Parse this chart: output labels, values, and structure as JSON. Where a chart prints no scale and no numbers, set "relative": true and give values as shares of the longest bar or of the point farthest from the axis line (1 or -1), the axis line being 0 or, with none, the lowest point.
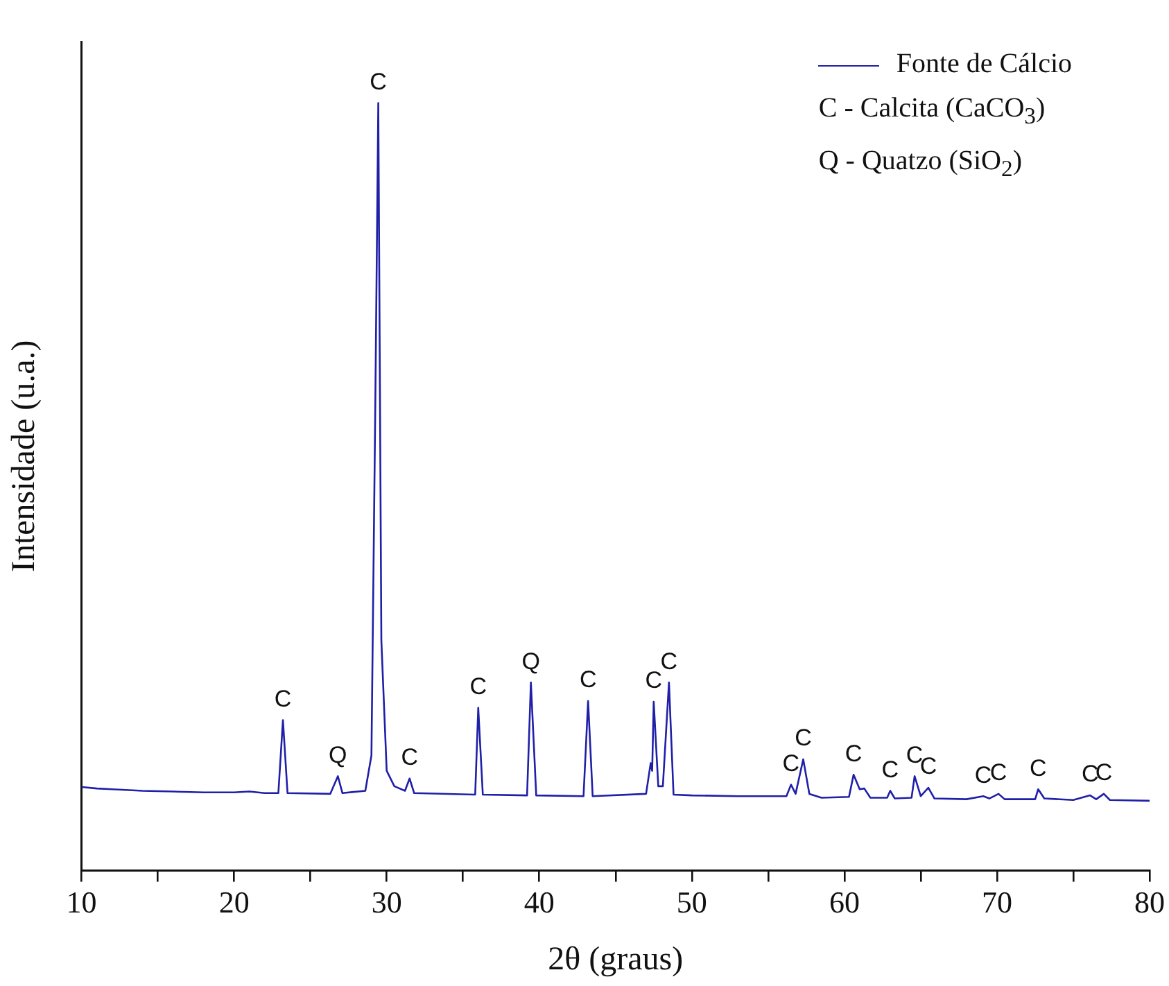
{
  "chart_data": {
    "type": "line",
    "relative": true,
    "xlabel": "2θ (graus)",
    "ylabel": "Intensidade (u.a.)",
    "legend": "top right",
    "marker": "none",
    "grid": false,
    "xlim": [
      10,
      80
    ],
    "xticks": [
      10,
      {
        "value": 15,
        "label": null
      },
      20,
      {
        "value": 25,
        "label": null
      },
      30,
      {
        "value": 35,
        "label": null
      },
      40,
      {
        "value": 45,
        "label": null
      },
      50,
      {
        "value": 55,
        "label": null
      },
      60,
      {
        "value": 65,
        "label": null
      },
      70,
      {
        "value": 75,
        "label": null
      },
      80
    ],
    "series": [
      {
        "name": "Fonte de Cálcio",
        "color": "#1f1fa8",
        "x": [
          10,
          11,
          12,
          14,
          16,
          18,
          20,
          21,
          22,
          22.9,
          23.2,
          23.5,
          26.3,
          26.8,
          27.1,
          28.6,
          29.0,
          29.25,
          29.45,
          29.65,
          30.0,
          30.5,
          31.2,
          31.5,
          31.8,
          35.8,
          36.0,
          36.3,
          39.2,
          39.45,
          39.8,
          42.9,
          43.2,
          43.5,
          47.0,
          47.3,
          47.4,
          47.5,
          47.8,
          48.1,
          48.5,
          48.8,
          50,
          53,
          56.2,
          56.5,
          56.8,
          57.3,
          57.7,
          58.5,
          60.3,
          60.6,
          61.0,
          61.3,
          61.7,
          62.8,
          63.0,
          63.3,
          64.4,
          64.6,
          65.0,
          65.5,
          65.9,
          68,
          69.1,
          69.5,
          70.1,
          70.5,
          72.5,
          72.7,
          73.1,
          75,
          76.1,
          76.5,
          77.0,
          77.4,
          80
        ],
        "values": [
          0.109,
          0.107,
          0.106,
          0.104,
          0.103,
          0.102,
          0.102,
          0.103,
          0.101,
          0.101,
          0.196,
          0.101,
          0.1,
          0.123,
          0.101,
          0.104,
          0.15,
          0.6,
          1,
          0.3,
          0.13,
          0.11,
          0.104,
          0.12,
          0.101,
          0.099,
          0.212,
          0.099,
          0.098,
          0.245,
          0.098,
          0.097,
          0.221,
          0.097,
          0.1,
          0.14,
          0.13,
          0.22,
          0.11,
          0.11,
          0.245,
          0.099,
          0.098,
          0.097,
          0.097,
          0.112,
          0.1,
          0.145,
          0.1,
          0.095,
          0.096,
          0.125,
          0.106,
          0.107,
          0.095,
          0.095,
          0.104,
          0.094,
          0.095,
          0.123,
          0.097,
          0.108,
          0.094,
          0.093,
          0.097,
          0.094,
          0.1,
          0.093,
          0.093,
          0.106,
          0.094,
          0.092,
          0.098,
          0.093,
          0.1,
          0.092,
          0.091
        ]
      }
    ],
    "annotations": [
      "C - Calcita (CaCO$_{3}$)",
      "Q - Quatzo (SiO$_{2}$)",
      {
        "text": "C",
        "x": 23.2,
        "y": 0.196
      },
      {
        "text": "Q",
        "x": 26.8,
        "y": 0.123
      },
      {
        "text": "C",
        "x": 29.45,
        "y": 1
      },
      {
        "text": "C",
        "x": 31.5,
        "y": 0.12
      },
      {
        "text": "C",
        "x": 36.0,
        "y": 0.212
      },
      {
        "text": "Q",
        "x": 39.45,
        "y": 0.245
      },
      {
        "text": "C",
        "x": 43.2,
        "y": 0.221
      },
      {
        "text": "C",
        "x": 47.5,
        "y": 0.22
      },
      {
        "text": "C",
        "x": 48.5,
        "y": 0.245
      },
      {
        "text": "C",
        "x": 56.5,
        "y": 0.112
      },
      {
        "text": "C",
        "x": 57.3,
        "y": 0.145
      },
      {
        "text": "C",
        "x": 60.6,
        "y": 0.125
      },
      {
        "text": "C",
        "x": 63.0,
        "y": 0.104
      },
      {
        "text": "C",
        "x": 64.6,
        "y": 0.123
      },
      {
        "text": "C",
        "x": 65.5,
        "y": 0.108
      },
      {
        "text": "C",
        "x": 69.1,
        "y": 0.097
      },
      {
        "text": "C",
        "x": 70.1,
        "y": 0.1
      },
      {
        "text": "C",
        "x": 72.7,
        "y": 0.106
      },
      {
        "text": "C",
        "x": 76.1,
        "y": 0.098
      },
      {
        "text": "C",
        "x": 77.0,
        "y": 0.1
      }
    ]
  }
}
